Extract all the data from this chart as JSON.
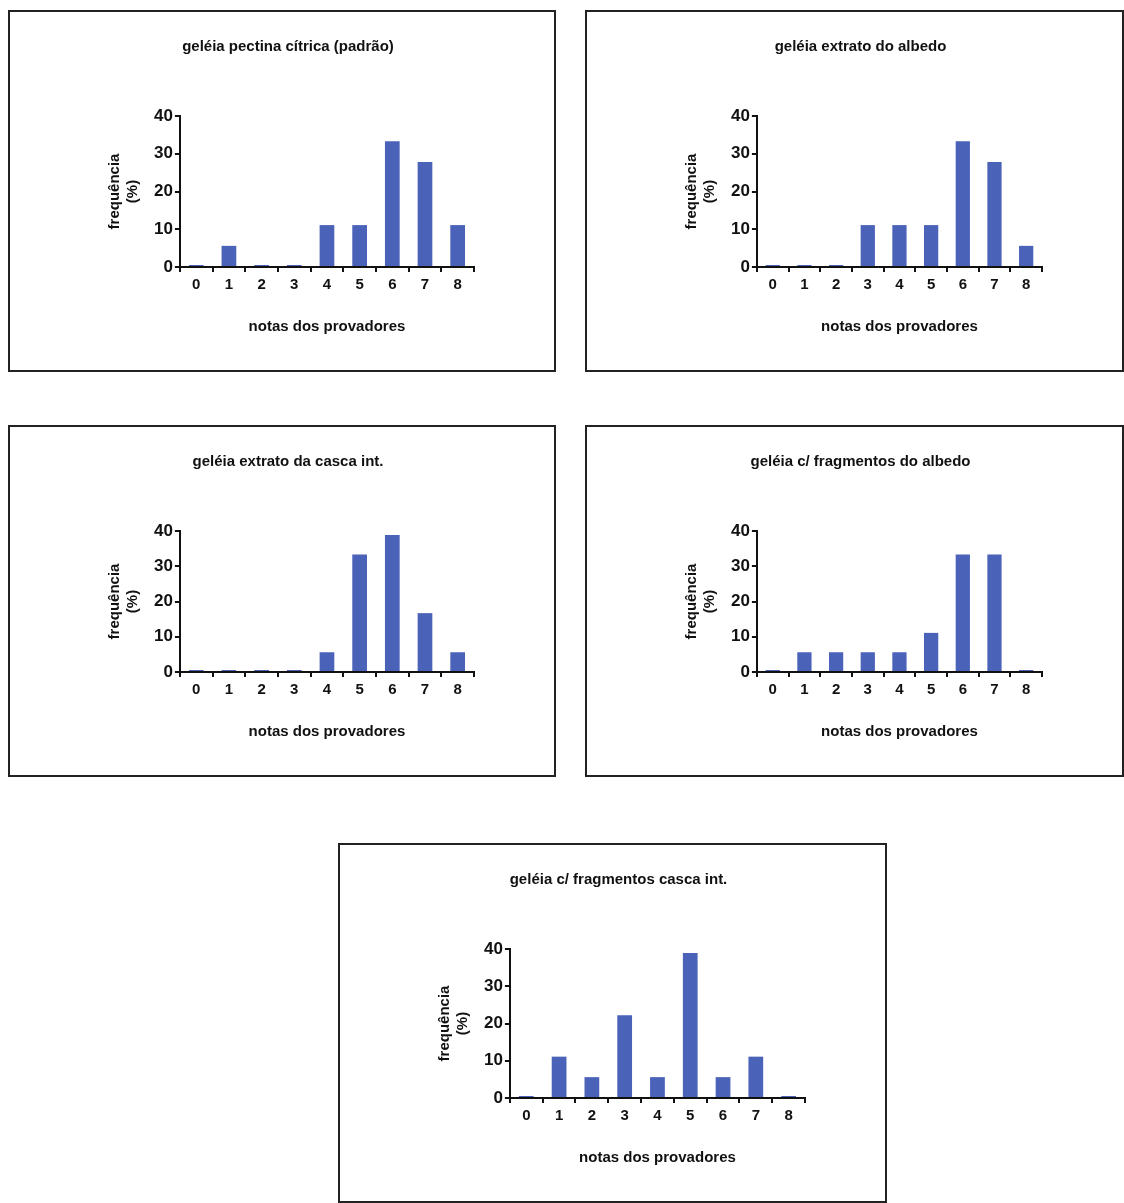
{
  "chart_data": [
    {
      "type": "bar",
      "title": "geléia pectina cítrica (padrão)",
      "xlabel": "notas dos provadores",
      "ylabel": "frequência (%)",
      "categories": [
        "0",
        "1",
        "2",
        "3",
        "4",
        "5",
        "6",
        "7",
        "8"
      ],
      "values": [
        0,
        5.6,
        0,
        0,
        11.1,
        11.1,
        33.3,
        27.8,
        11.1
      ],
      "color": "#4a62b8",
      "ylim": [
        0,
        40
      ],
      "yticks": [
        0,
        10,
        20,
        30,
        40
      ],
      "grid": false,
      "legend": false
    },
    {
      "type": "bar",
      "title": "geléia extrato do albedo",
      "xlabel": "notas dos provadores",
      "ylabel": "frequência (%)",
      "categories": [
        "0",
        "1",
        "2",
        "3",
        "4",
        "5",
        "6",
        "7",
        "8"
      ],
      "values": [
        0,
        0,
        0,
        11.1,
        11.1,
        11.1,
        33.3,
        27.8,
        5.6
      ],
      "color": "#4a62b8",
      "ylim": [
        0,
        40
      ],
      "yticks": [
        0,
        10,
        20,
        30,
        40
      ],
      "grid": false,
      "legend": false
    },
    {
      "type": "bar",
      "title": "geléia extrato da casca int.",
      "xlabel": "notas dos provadores",
      "ylabel": "frequência (%)",
      "categories": [
        "0",
        "1",
        "2",
        "3",
        "4",
        "5",
        "6",
        "7",
        "8"
      ],
      "values": [
        0,
        0,
        0,
        0,
        5.6,
        33.3,
        38.9,
        16.7,
        5.6
      ],
      "color": "#4a62b8",
      "ylim": [
        0,
        40
      ],
      "yticks": [
        0,
        10,
        20,
        30,
        40
      ],
      "grid": false,
      "legend": false
    },
    {
      "type": "bar",
      "title": "geléia c/ fragmentos do albedo",
      "xlabel": "notas dos provadores",
      "ylabel": "frequência (%)",
      "categories": [
        "0",
        "1",
        "2",
        "3",
        "4",
        "5",
        "6",
        "7",
        "8"
      ],
      "values": [
        0,
        5.6,
        5.6,
        5.6,
        5.6,
        11.1,
        33.3,
        33.3,
        0
      ],
      "color": "#4a62b8",
      "ylim": [
        0,
        40
      ],
      "yticks": [
        0,
        10,
        20,
        30,
        40
      ],
      "grid": false,
      "legend": false
    },
    {
      "type": "bar",
      "title": "geléia c/ fragmentos casca int.",
      "xlabel": "notas dos provadores",
      "ylabel": "frequência (%)",
      "categories": [
        "0",
        "1",
        "2",
        "3",
        "4",
        "5",
        "6",
        "7",
        "8"
      ],
      "values": [
        0,
        11.1,
        5.6,
        22.2,
        5.6,
        38.9,
        5.6,
        11.1,
        0
      ],
      "color": "#4a62b8",
      "ylim": [
        0,
        40
      ],
      "yticks": [
        0,
        10,
        20,
        30,
        40
      ],
      "grid": false,
      "legend": false
    }
  ]
}
